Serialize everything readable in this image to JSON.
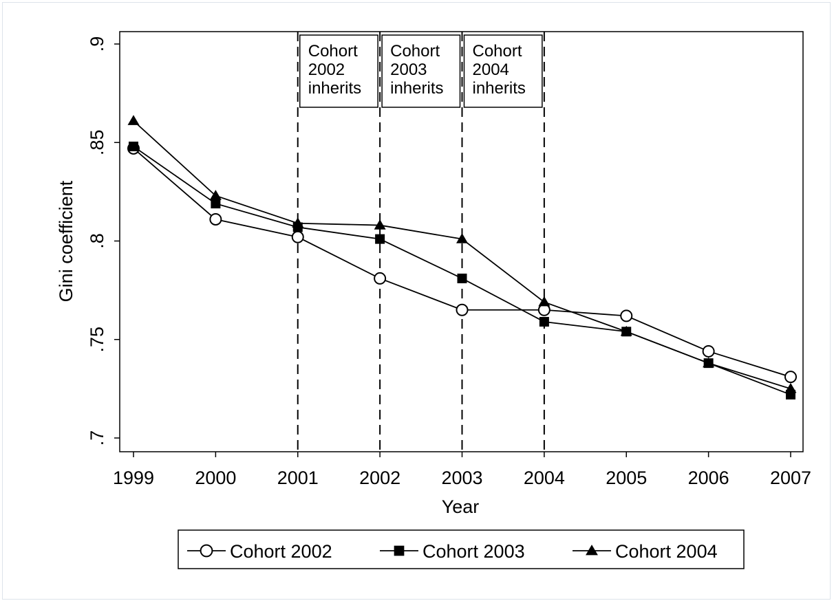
{
  "chart_data": {
    "type": "line",
    "xlabel": "Year",
    "ylabel": "Gini coefficient",
    "x": [
      1999,
      2000,
      2001,
      2002,
      2003,
      2004,
      2005,
      2006,
      2007
    ],
    "xlim": [
      1999,
      2007
    ],
    "ylim": [
      0.7,
      0.9
    ],
    "y_ticks": [
      0.7,
      0.75,
      0.8,
      0.85,
      0.9
    ],
    "y_tick_labels": [
      ".7",
      ".75",
      ".8",
      ".85",
      ".9"
    ],
    "x_tick_labels": [
      "1999",
      "2000",
      "2001",
      "2002",
      "2003",
      "2004",
      "2005",
      "2006",
      "2007"
    ],
    "grid": false,
    "legend_position": "bottom",
    "series": [
      {
        "name": "Cohort 2002",
        "marker": "hollow-circle",
        "color": "#000000",
        "values": [
          0.847,
          0.811,
          0.802,
          0.781,
          0.765,
          0.765,
          0.762,
          0.744,
          0.731
        ]
      },
      {
        "name": "Cohort 2003",
        "marker": "filled-square",
        "color": "#000000",
        "values": [
          0.848,
          0.819,
          0.807,
          0.801,
          0.781,
          0.759,
          0.754,
          0.738,
          0.722
        ]
      },
      {
        "name": "Cohort 2004",
        "marker": "filled-triangle",
        "color": "#000000",
        "values": [
          0.861,
          0.823,
          0.809,
          0.808,
          0.801,
          0.769,
          0.754,
          0.738,
          0.725
        ]
      }
    ],
    "reference_lines": [
      2001,
      2002,
      2003,
      2004
    ],
    "annotations": [
      {
        "lines": [
          "Cohort",
          "2002",
          "inherits"
        ],
        "x_from": 2001,
        "x_to": 2002
      },
      {
        "lines": [
          "Cohort",
          "2003",
          "inherits"
        ],
        "x_from": 2002,
        "x_to": 2003
      },
      {
        "lines": [
          "Cohort",
          "2004",
          "inherits"
        ],
        "x_from": 2003,
        "x_to": 2004
      }
    ]
  }
}
